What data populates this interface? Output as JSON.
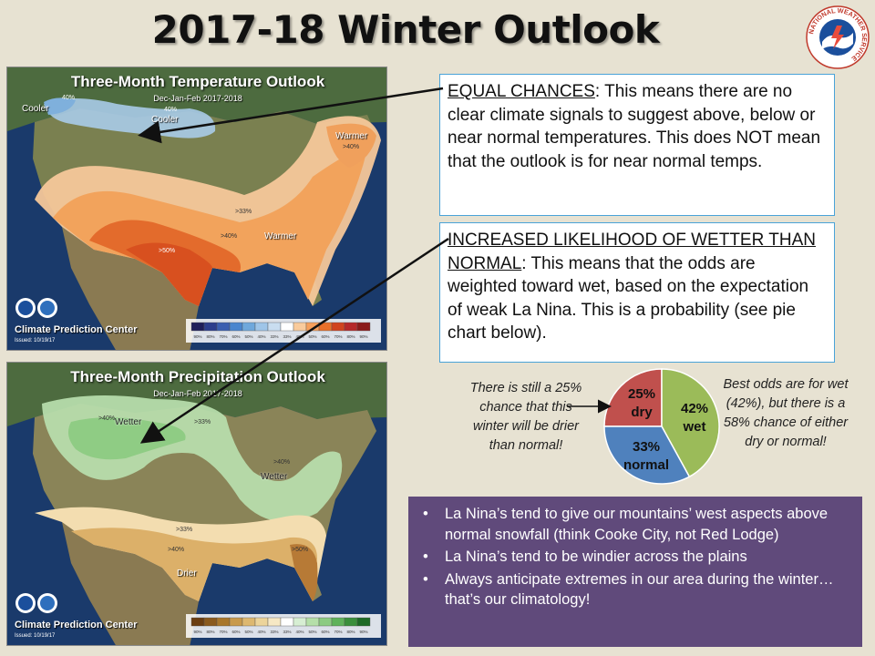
{
  "title": "2017-18 Winter Outlook",
  "logo": {
    "text": "NATIONAL WEATHER SERVICE",
    "icon": "nws-logo-icon"
  },
  "temperature_map": {
    "title": "Three-Month Temperature Outlook",
    "subtitle": "Dec-Jan-Feb 2017-2018",
    "labels": {
      "cooler_left": "Cooler",
      "cooler_right": "Cooler",
      "warmer_ne": "Warmer",
      "warmer_s": "Warmer"
    },
    "percent_labels": {
      "p40a": "40%",
      "p40b": "40%",
      "p40c": ">40%",
      "p33": ">33%",
      "p40d": ">40%",
      "p50": ">50%"
    },
    "credit": "Climate Prediction Center",
    "issued": "Issued: 10/19/17",
    "legend_colors": [
      "#1f1f5a",
      "#2c3e8c",
      "#3b5fb0",
      "#4a86cf",
      "#6fa8dc",
      "#9fc5e8",
      "#c9ddf0",
      "#ffffff",
      "#f9cb9c",
      "#f6a05c",
      "#e8702a",
      "#d0431f",
      "#b5282a",
      "#8a1a1a"
    ],
    "legend_ticks": [
      "90%",
      "80%",
      "70%",
      "60%",
      "50%",
      "40%",
      "33%",
      "33%",
      "40%",
      "50%",
      "60%",
      "70%",
      "80%",
      "90%"
    ]
  },
  "precipitation_map": {
    "title": "Three-Month Precipitation Outlook",
    "subtitle": "Dec-Jan-Feb 2017-2018",
    "labels": {
      "wetter_left": "Wetter",
      "wetter_right": "Wetter",
      "drier": "Drier"
    },
    "percent_labels": {
      "p40": ">40%",
      "p33": ">33%",
      "p40b": ">40%",
      "p33b": ">33%",
      "p40c": ">40%",
      "p50": ">50%"
    },
    "credit": "Climate Prediction Center",
    "issued": "Issued: 10/19/17",
    "legend_colors": [
      "#6b3e12",
      "#8a5a1e",
      "#a8772c",
      "#c89a4c",
      "#ddb870",
      "#ecd49a",
      "#f6e8c4",
      "#ffffff",
      "#d7eed3",
      "#b5dfa9",
      "#8ccb82",
      "#5fb25b",
      "#3a8f3c",
      "#1d6a26"
    ],
    "legend_ticks": [
      "90%",
      "80%",
      "70%",
      "60%",
      "50%",
      "40%",
      "33%",
      "33%",
      "40%",
      "50%",
      "60%",
      "70%",
      "80%",
      "90%"
    ]
  },
  "box_equal": {
    "heading": "EQUAL CHANCES",
    "body": ": This means there are no clear climate signals to suggest above, below or near normal temperatures. This does NOT mean that the outlook is for near normal temps."
  },
  "box_wetter": {
    "heading": "INCREASED LIKELIHOOD OF WETTER THAN NORMAL",
    "body": ": This means that the odds are weighted toward wet, based on the expectation of weak La Nina. This is a probability (see pie chart below)."
  },
  "note_left": "There is still a 25% chance that this winter will be drier than normal!",
  "note_right": "Best odds are for wet (42%), but there is a 58% chance of either dry or normal!",
  "chart_data": {
    "type": "pie",
    "categories": [
      "dry",
      "wet",
      "normal"
    ],
    "values": [
      25,
      42,
      33
    ],
    "labels": [
      {
        "pct": "25%",
        "name": "dry"
      },
      {
        "pct": "42%",
        "name": "wet"
      },
      {
        "pct": "33%",
        "name": "normal"
      }
    ],
    "colors": [
      "#c0504d",
      "#9bbb59",
      "#4f81bd"
    ]
  },
  "bullets": [
    "La Nina’s tend to give our mountains’ west aspects above normal snowfall (think Cooke City, not Red Lodge)",
    "La Nina’s tend to be windier across the plains",
    "Always anticipate extremes in our area during the winter…that’s our climatology!"
  ],
  "colors": {
    "background": "#e7e2d2",
    "bullet_box": "#604a7b",
    "box_border": "#4aa3d8"
  }
}
